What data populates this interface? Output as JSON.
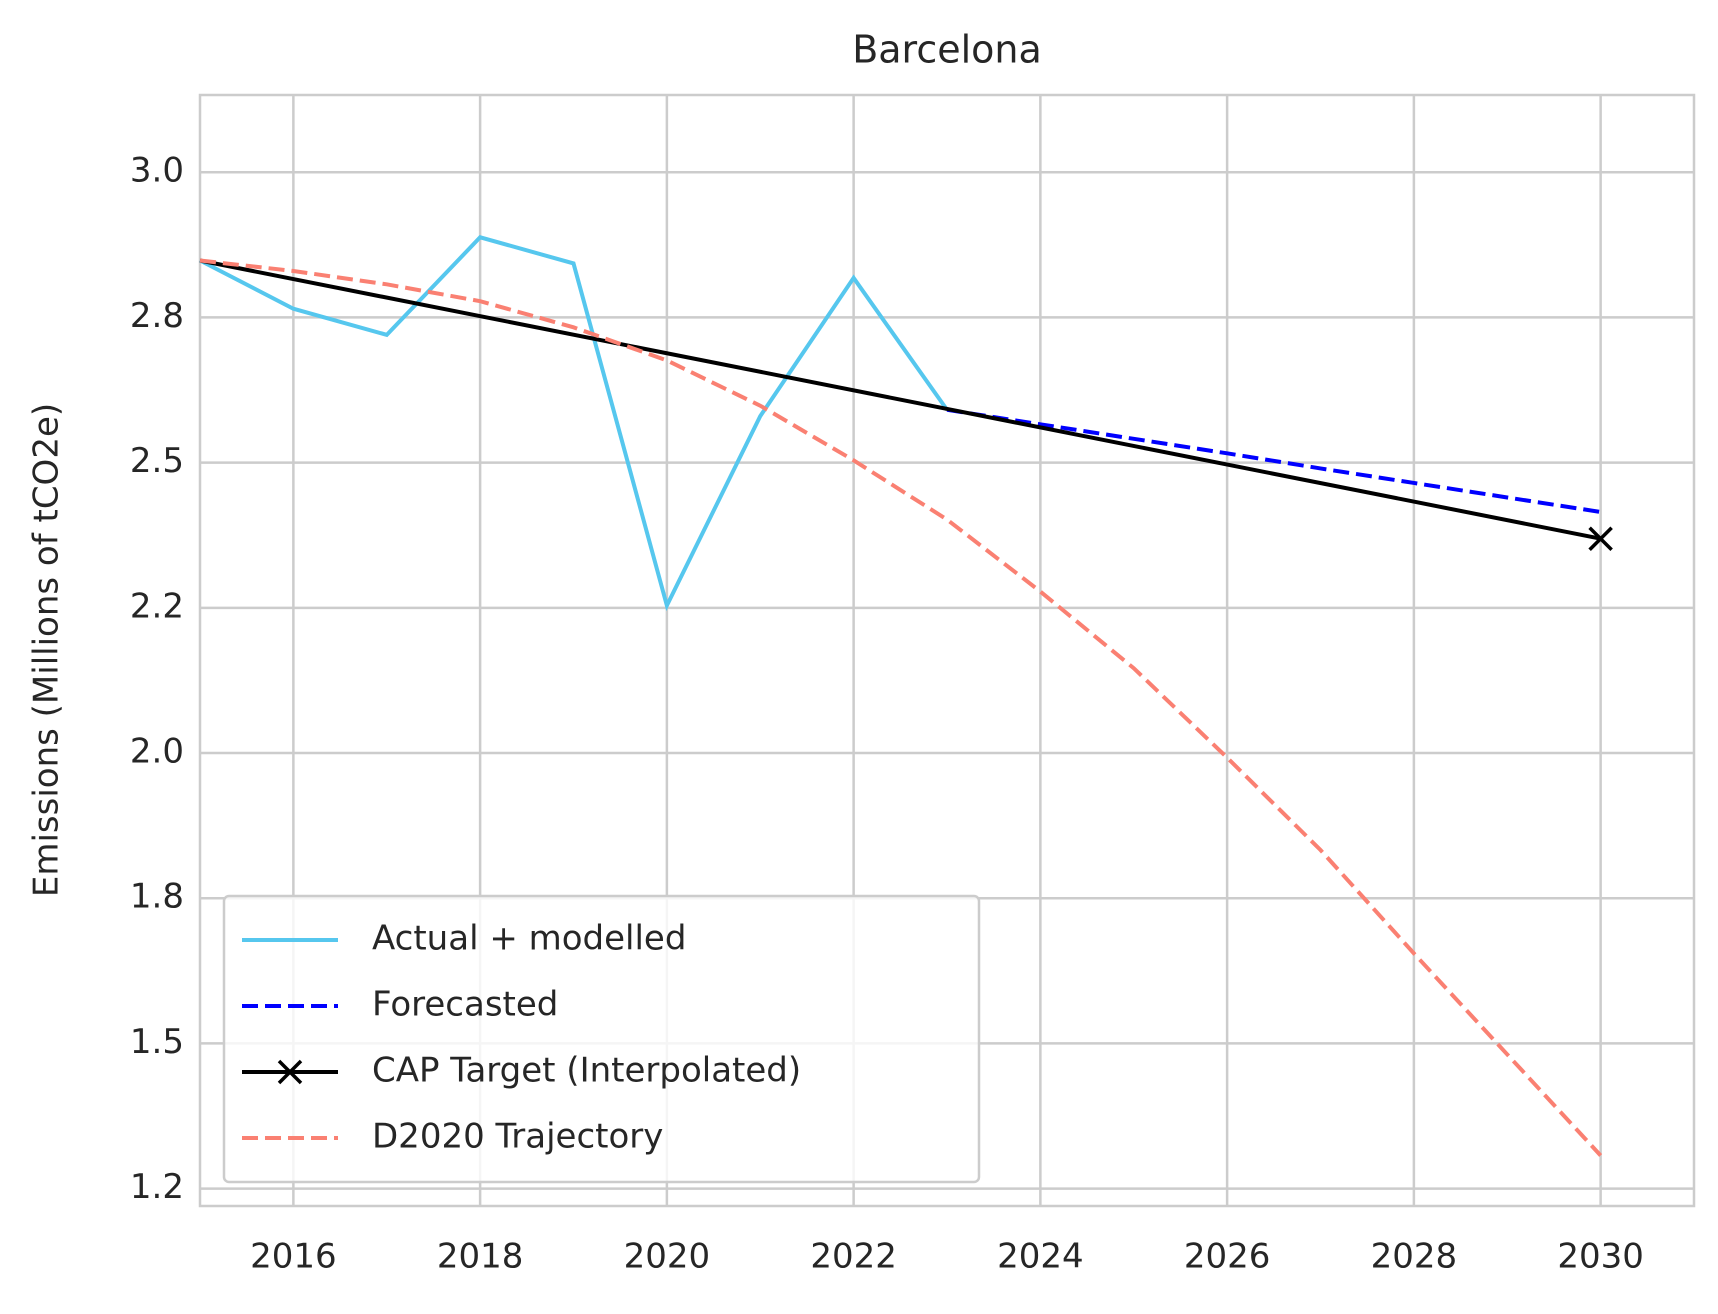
{
  "chart_data": {
    "type": "line",
    "title": "Barcelona",
    "y_label": "Emissions (Millions of tCO2e)",
    "xlim": [
      2015,
      2031
    ],
    "xticks": [
      2016,
      2018,
      2020,
      2022,
      2024,
      2026,
      2028,
      2030
    ],
    "ylim": [
      1.22,
      3.133
    ],
    "yticks": [
      {
        "value": 1.25,
        "label": "1.2"
      },
      {
        "value": 1.5,
        "label": "1.5"
      },
      {
        "value": 1.75,
        "label": "1.8"
      },
      {
        "value": 2.0,
        "label": "2.0"
      },
      {
        "value": 2.25,
        "label": "2.2"
      },
      {
        "value": 2.5,
        "label": "2.5"
      },
      {
        "value": 2.75,
        "label": "2.8"
      },
      {
        "value": 3.0,
        "label": "3.0"
      }
    ],
    "grid": true,
    "legend": "lower left",
    "series": [
      {
        "name": "Actual + modelled",
        "color": "#56c7ee",
        "linestyle": "solid",
        "x": [
          2015,
          2016,
          2017,
          2018,
          2019,
          2020,
          2021,
          2022,
          2023
        ],
        "values": [
          2.848,
          2.765,
          2.72,
          2.888,
          2.843,
          2.254,
          2.58,
          2.818,
          2.591
        ]
      },
      {
        "name": "Forecasted",
        "color": "#0000ff",
        "linestyle": "dashed",
        "x": [
          2023,
          2024,
          2025,
          2026,
          2027,
          2028,
          2029,
          2030
        ],
        "values": [
          2.591,
          2.566,
          2.541,
          2.516,
          2.49,
          2.465,
          2.44,
          2.415
        ]
      },
      {
        "name": "CAP Target (Interpolated)",
        "color": "#000000",
        "linestyle": "solid",
        "marker": "x",
        "marker_indices": [
          1
        ],
        "x": [
          2015,
          2030
        ],
        "values": [
          2.848,
          2.369
        ]
      },
      {
        "name": "D2020 Trajectory",
        "color": "#fa8072",
        "linestyle": "dashed",
        "x": [
          2015,
          2016,
          2017,
          2018,
          2019,
          2020,
          2021,
          2022,
          2023,
          2024,
          2025,
          2026,
          2027,
          2028,
          2029,
          2030
        ],
        "values": [
          2.848,
          2.83,
          2.807,
          2.778,
          2.733,
          2.676,
          2.598,
          2.504,
          2.402,
          2.278,
          2.146,
          1.992,
          1.833,
          1.655,
          1.481,
          1.307
        ]
      }
    ]
  }
}
